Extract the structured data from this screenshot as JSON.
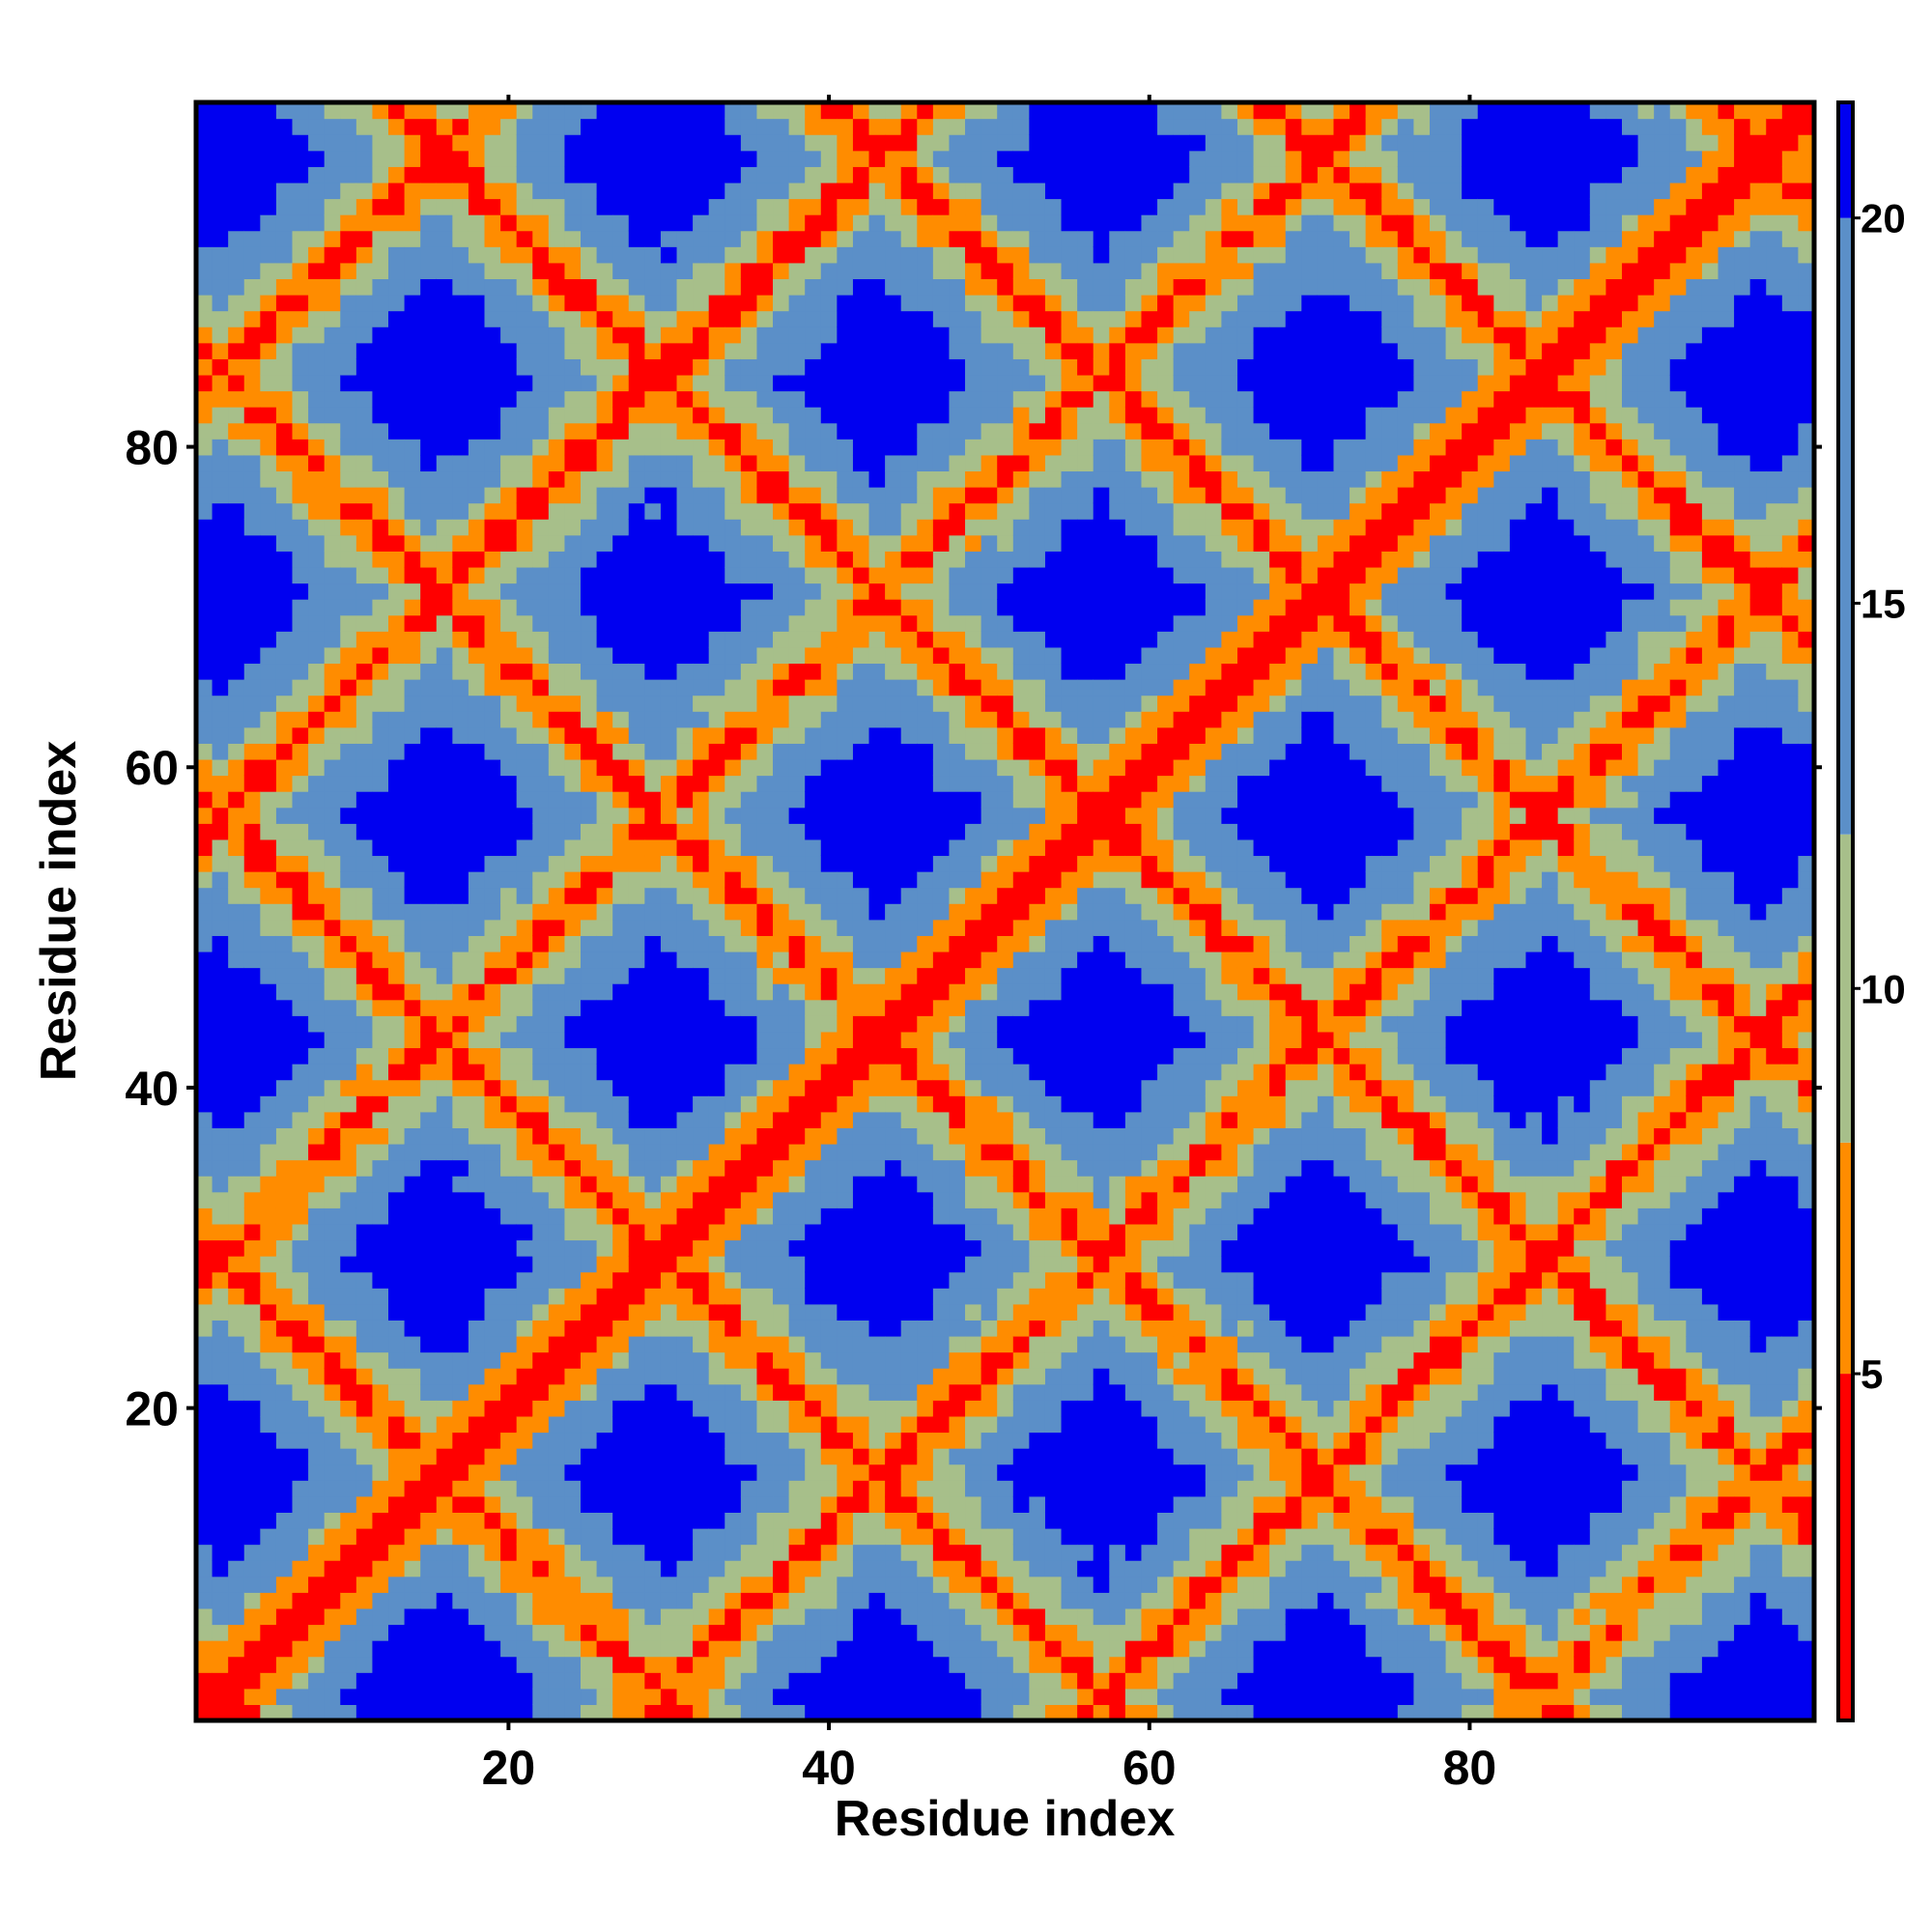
{
  "chart_data": {
    "type": "heatmap",
    "title": "",
    "xlabel": "Residue index",
    "ylabel": "Residue index",
    "xlim": [
      0.5,
      101.5
    ],
    "ylim": [
      0.5,
      101.5
    ],
    "x_ticks": [
      20,
      40,
      60,
      80
    ],
    "y_ticks": [
      20,
      40,
      60,
      80
    ],
    "colorbar": {
      "ticks": [
        5,
        10,
        15,
        20
      ],
      "range": [
        0.5,
        21.5
      ],
      "bands": [
        {
          "from": 0.5,
          "to": 5.0,
          "color": "#ff0000"
        },
        {
          "from": 5.0,
          "to": 8.0,
          "color": "#ff8c00"
        },
        {
          "from": 8.0,
          "to": 12.0,
          "color": "#a7bf8a"
        },
        {
          "from": 12.0,
          "to": 20.0,
          "color": "#5b8fc8"
        },
        {
          "from": 20.0,
          "to": 21.5,
          "color": "#0000f0"
        }
      ]
    },
    "matrix_size": 101,
    "description_of_values": "pairwise distance map between residues",
    "grid": false,
    "legend": "colorbar-right",
    "colors": {
      "very_close": "#ff0000",
      "close": "#ff8c00",
      "medium": "#a7bf8a",
      "far": "#5b8fc8",
      "very_far": "#0000f0"
    }
  }
}
